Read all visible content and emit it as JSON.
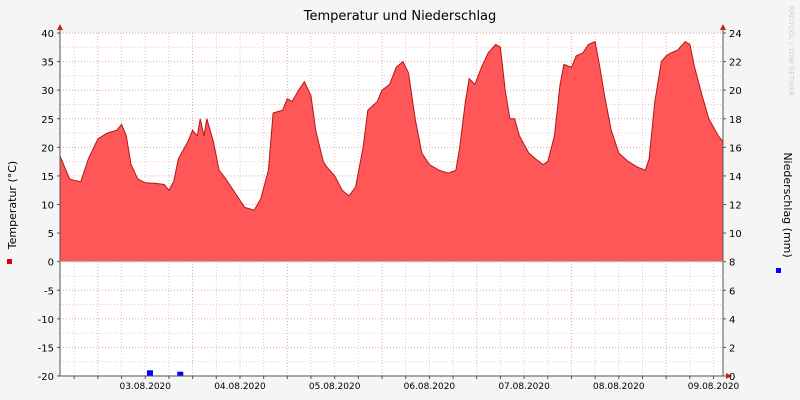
{
  "chart_data": {
    "type": "area",
    "title": "Temperatur und Niederschlag",
    "watermark": "RRDTOOL / TOBI OETIKER",
    "left_axis": {
      "label": "Temperatur (°C)",
      "min": -20,
      "max": 40,
      "step": 5,
      "marker_color": "#e0000f"
    },
    "right_axis": {
      "label": "Niederschlag (mm)",
      "min": 0,
      "max": 24,
      "step": 2,
      "marker_color": "#0000ff"
    },
    "x_axis": {
      "start_day": 2.6,
      "end_day": 9.6,
      "tick_labels": [
        {
          "label": "03.08.2020",
          "day": 3
        },
        {
          "label": "04.08.2020",
          "day": 4
        },
        {
          "label": "05.08.2020",
          "day": 5
        },
        {
          "label": "06.08.2020",
          "day": 6
        },
        {
          "label": "07.08.2020",
          "day": 7
        },
        {
          "label": "08.08.2020",
          "day": 8
        },
        {
          "label": "09.08.2020",
          "day": 9
        }
      ]
    },
    "grid": true,
    "colors": {
      "area_fill": "#ff5757",
      "area_line": "#b31616",
      "precip": "#0000ff",
      "grid_minor": "#f1c3c3",
      "axis": "#cc2222"
    },
    "series": [
      {
        "name": "Temperatur",
        "axis": "left",
        "points": [
          [
            2.6,
            18.5
          ],
          [
            2.65,
            16.5
          ],
          [
            2.7,
            14.5
          ],
          [
            2.75,
            14.2
          ],
          [
            2.82,
            14.0
          ],
          [
            2.9,
            18.0
          ],
          [
            3.0,
            21.5
          ],
          [
            3.1,
            22.5
          ],
          [
            3.2,
            23.0
          ],
          [
            3.25,
            24.0
          ],
          [
            3.3,
            22.0
          ],
          [
            3.35,
            17.0
          ],
          [
            3.42,
            14.5
          ],
          [
            3.5,
            13.8
          ],
          [
            3.6,
            13.7
          ],
          [
            3.7,
            13.5
          ],
          [
            3.75,
            12.5
          ],
          [
            3.8,
            14.0
          ],
          [
            3.85,
            18.0
          ],
          [
            3.95,
            21.0
          ],
          [
            4.0,
            23.0
          ],
          [
            4.05,
            22.0
          ],
          [
            4.08,
            25.0
          ],
          [
            4.12,
            22.0
          ],
          [
            4.15,
            25.0
          ],
          [
            4.22,
            21.0
          ],
          [
            4.28,
            16.0
          ],
          [
            4.35,
            14.5
          ],
          [
            4.45,
            12.0
          ],
          [
            4.55,
            9.5
          ],
          [
            4.65,
            9.0
          ],
          [
            4.72,
            11.0
          ],
          [
            4.8,
            16.0
          ],
          [
            4.85,
            26.0
          ],
          [
            4.95,
            26.5
          ],
          [
            5.0,
            28.5
          ],
          [
            5.05,
            28.0
          ],
          [
            5.12,
            30.0
          ],
          [
            5.18,
            31.5
          ],
          [
            5.25,
            29.0
          ],
          [
            5.3,
            23.0
          ],
          [
            5.38,
            17.5
          ],
          [
            5.42,
            16.5
          ],
          [
            5.5,
            15.0
          ],
          [
            5.58,
            12.5
          ],
          [
            5.65,
            11.5
          ],
          [
            5.72,
            13.0
          ],
          [
            5.8,
            20.0
          ],
          [
            5.85,
            26.5
          ],
          [
            5.95,
            28.0
          ],
          [
            6.0,
            30.0
          ],
          [
            6.08,
            31.0
          ],
          [
            6.15,
            34.0
          ],
          [
            6.22,
            35.0
          ],
          [
            6.28,
            33.0
          ],
          [
            6.35,
            25.0
          ],
          [
            6.42,
            19.0
          ],
          [
            6.5,
            17.0
          ],
          [
            6.6,
            16.0
          ],
          [
            6.7,
            15.5
          ],
          [
            6.78,
            16.0
          ],
          [
            6.82,
            20.0
          ],
          [
            6.88,
            28.0
          ],
          [
            6.92,
            32.0
          ],
          [
            6.98,
            31.0
          ],
          [
            7.05,
            34.0
          ],
          [
            7.12,
            36.5
          ],
          [
            7.2,
            38.0
          ],
          [
            7.25,
            37.5
          ],
          [
            7.3,
            30.0
          ],
          [
            7.35,
            25.0
          ],
          [
            7.4,
            25.0
          ],
          [
            7.45,
            22.0
          ],
          [
            7.55,
            19.0
          ],
          [
            7.62,
            18.0
          ],
          [
            7.7,
            17.0
          ],
          [
            7.75,
            17.5
          ],
          [
            7.82,
            22.0
          ],
          [
            7.88,
            31.0
          ],
          [
            7.92,
            34.5
          ],
          [
            8.0,
            34.0
          ],
          [
            8.05,
            36.0
          ],
          [
            8.12,
            36.5
          ],
          [
            8.18,
            38.0
          ],
          [
            8.25,
            38.5
          ],
          [
            8.3,
            34.0
          ],
          [
            8.35,
            29.0
          ],
          [
            8.42,
            23.0
          ],
          [
            8.5,
            19.0
          ],
          [
            8.6,
            17.5
          ],
          [
            8.7,
            16.5
          ],
          [
            8.78,
            16.0
          ],
          [
            8.82,
            18.0
          ],
          [
            8.88,
            28.0
          ],
          [
            8.95,
            35.0
          ],
          [
            9.0,
            36.0
          ],
          [
            9.05,
            36.5
          ],
          [
            9.12,
            37.0
          ],
          [
            9.2,
            38.5
          ],
          [
            9.25,
            38.0
          ],
          [
            9.3,
            34.0
          ],
          [
            9.38,
            29.0
          ],
          [
            9.45,
            25.0
          ],
          [
            9.55,
            22.0
          ],
          [
            9.6,
            21.0
          ]
        ]
      },
      {
        "name": "Niederschlag",
        "axis": "right",
        "points": [
          [
            3.55,
            0.4
          ],
          [
            3.87,
            0.3
          ]
        ]
      }
    ]
  }
}
